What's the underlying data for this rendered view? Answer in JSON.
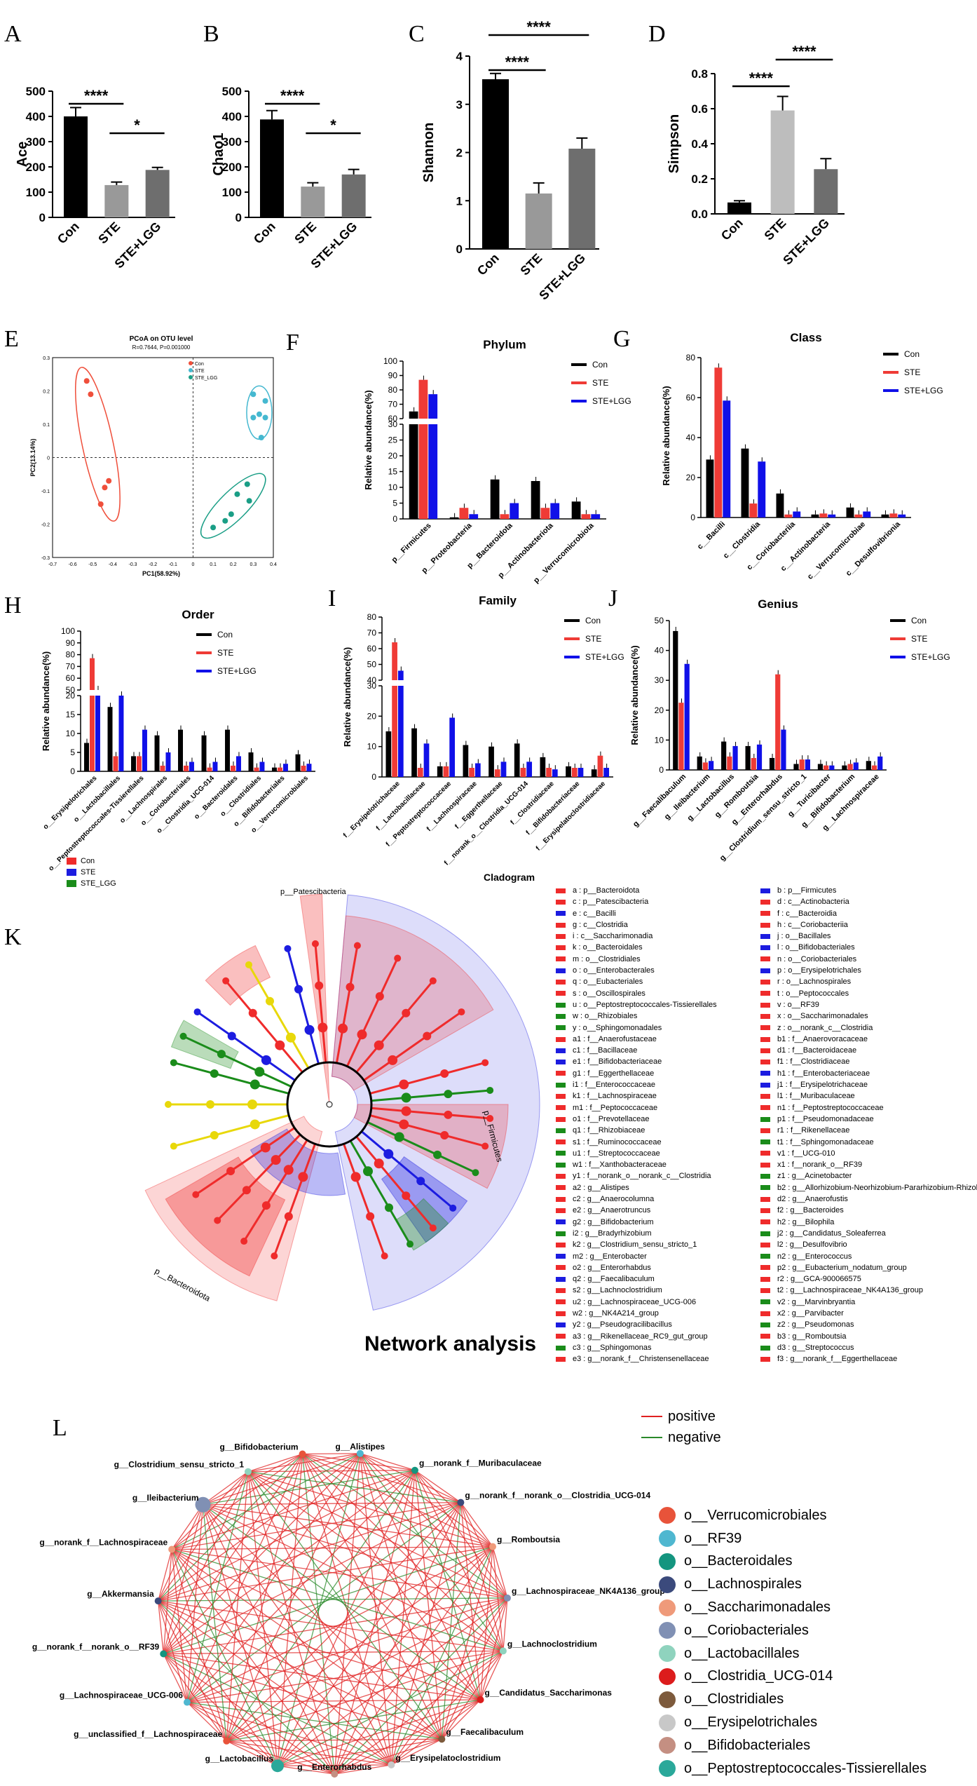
{
  "colors": {
    "black": "#000000",
    "red": "#ef3b36",
    "blue": "#1010e8",
    "green": "#1a7f1a",
    "grey": "#999999",
    "lightgrey": "#bdbdbd"
  },
  "labels": {
    "A": "A",
    "B": "B",
    "C": "C",
    "D": "D",
    "E": "E",
    "F": "F",
    "G": "G",
    "H": "H",
    "I": "I",
    "J": "J",
    "K": "K",
    "L": "L"
  },
  "alpha_panels": [
    {
      "id": "A",
      "ylabel": "Ace",
      "ylim": [
        0,
        500
      ],
      "ticks": [
        0,
        100,
        200,
        300,
        400,
        500
      ],
      "categories": [
        "Con",
        "STE",
        "STE+LGG"
      ],
      "values": [
        400,
        128,
        188
      ],
      "errors": [
        35,
        12,
        10
      ],
      "colors": [
        "#000000",
        "#999999",
        "#6e6e6e"
      ],
      "sig": [
        {
          "from": 0,
          "to": 1,
          "text": "****"
        },
        {
          "from": 1,
          "to": 2,
          "text": "*"
        }
      ]
    },
    {
      "id": "B",
      "ylabel": "Chao1",
      "ylim": [
        0,
        500
      ],
      "ticks": [
        0,
        100,
        200,
        300,
        400,
        500
      ],
      "categories": [
        "Con",
        "STE",
        "STE+LGG"
      ],
      "values": [
        388,
        122,
        170
      ],
      "errors": [
        35,
        15,
        20
      ],
      "colors": [
        "#000000",
        "#999999",
        "#6e6e6e"
      ],
      "sig": [
        {
          "from": 0,
          "to": 1,
          "text": "****"
        },
        {
          "from": 1,
          "to": 2,
          "text": "*"
        }
      ]
    },
    {
      "id": "C",
      "ylabel": "Shannon",
      "ylim": [
        0,
        4
      ],
      "ticks": [
        0,
        1,
        2,
        3,
        4
      ],
      "categories": [
        "Con",
        "STE",
        "STE+LGG"
      ],
      "values": [
        3.52,
        1.15,
        2.08
      ],
      "errors": [
        0.12,
        0.22,
        0.22
      ],
      "colors": [
        "#000000",
        "#999999",
        "#6e6e6e"
      ],
      "sig": [
        {
          "from": 0,
          "to": 1,
          "text": "****"
        },
        {
          "from": 0,
          "to": 2,
          "text": "****"
        }
      ]
    },
    {
      "id": "D",
      "ylabel": "Simpson",
      "ylim": [
        0,
        0.8
      ],
      "ticks": [
        0.0,
        0.2,
        0.4,
        0.6,
        0.8
      ],
      "categories": [
        "Con",
        "STE",
        "STE+LGG"
      ],
      "values": [
        0.065,
        0.59,
        0.255
      ],
      "errors": [
        0.01,
        0.08,
        0.06
      ],
      "colors": [
        "#000000",
        "#bdbdbd",
        "#6e6e6e"
      ],
      "sig": [
        {
          "from": 0,
          "to": 1,
          "text": "****"
        },
        {
          "from": 1,
          "to": 2,
          "text": "****"
        }
      ]
    }
  ],
  "pcoa": {
    "title": "PCoA on OTU level",
    "subtitle": "R=0.7644, P=0.001000",
    "xlabel": "PC1(58.92%)",
    "ylabel": "PC2(13.14%)",
    "xticks": [
      "-0.7",
      "-0.6",
      "-0.5",
      "-0.4",
      "-0.3",
      "-0.2",
      "-0.1",
      "0",
      "0.1",
      "0.2",
      "0.3",
      "0.4"
    ],
    "yticks": [
      "0.3",
      "0.2",
      "0.1",
      "0",
      "-0.1",
      "-0.2",
      "-0.3"
    ],
    "legend": [
      {
        "label": "Con",
        "color": "#ef4f3b"
      },
      {
        "label": "STE",
        "color": "#45b8d0"
      },
      {
        "label": "STE_LGG",
        "color": "#1a9e86"
      }
    ],
    "points": {
      "Con": [
        [
          -0.53,
          0.23
        ],
        [
          -0.51,
          0.19
        ],
        [
          -0.42,
          -0.07
        ],
        [
          -0.44,
          -0.09
        ],
        [
          -0.46,
          -0.14
        ]
      ],
      "STE": [
        [
          0.3,
          0.19
        ],
        [
          0.36,
          0.17
        ],
        [
          0.33,
          0.13
        ],
        [
          0.36,
          0.12
        ],
        [
          0.3,
          0.12
        ],
        [
          0.34,
          0.06
        ]
      ],
      "STE_LGG": [
        [
          0.27,
          -0.08
        ],
        [
          0.22,
          -0.11
        ],
        [
          0.28,
          -0.13
        ],
        [
          0.19,
          -0.17
        ],
        [
          0.16,
          -0.19
        ],
        [
          0.1,
          -0.21
        ]
      ]
    }
  },
  "chart_data": [
    {
      "type": "bar",
      "id": "F",
      "title": "Phylum",
      "ylabel": "Relative abundance(%)",
      "categories": [
        "p__Firmicutes",
        "p__Proteobacteria",
        "p__Bacteroidota",
        "p__Actinobacteriota",
        "p__Verrucomicrobiota"
      ],
      "series": [
        {
          "name": "Con",
          "values": [
            65,
            0.5,
            12.5,
            12,
            5.5
          ]
        },
        {
          "name": "STE",
          "values": [
            87,
            3.5,
            1.5,
            3.5,
            1.5
          ]
        },
        {
          "name": "STE+LGG",
          "values": [
            77,
            1.5,
            5,
            5,
            1.5
          ]
        }
      ]
    },
    {
      "type": "bar",
      "id": "G",
      "title": "Class",
      "ylabel": "Relative abundance(%)",
      "categories": [
        "c__Bacilli",
        "c__Clostridia",
        "c__Coriobacteriia",
        "c__Actinobacteria",
        "c__Verrucomicrobiae",
        "c__Desulfovibrionia"
      ],
      "series": [
        {
          "name": "Con",
          "values": [
            29,
            34.5,
            12,
            1.5,
            5,
            1.5
          ]
        },
        {
          "name": "STE",
          "values": [
            75,
            7,
            1.5,
            2,
            1.5,
            2
          ]
        },
        {
          "name": "STE+LGG",
          "values": [
            58.5,
            28,
            3,
            1.5,
            3,
            1.5
          ]
        }
      ]
    },
    {
      "type": "bar",
      "id": "H",
      "title": "Order",
      "ylabel": "Relative abundance(%)",
      "categories": [
        "o__Erysipelotrichales",
        "o__Lactobacillales",
        "o__Peptostreptococcales-Tissierellales",
        "o__Lachnospirales",
        "o__Coriobacteriales",
        "o__Clostridia_UCG-014",
        "o__Bacteroidales",
        "o__Clostridiales",
        "o__Bifidobacteriales",
        "o__Verrucomicrobiales"
      ],
      "series": [
        {
          "name": "Con",
          "values": [
            7.5,
            17,
            4,
            9.5,
            11,
            9.5,
            11,
            5,
            1,
            4.5
          ]
        },
        {
          "name": "STE",
          "values": [
            77,
            4,
            4,
            1.5,
            1.5,
            1,
            1.5,
            1,
            1,
            1.5
          ]
        },
        {
          "name": "STE+LGG",
          "values": [
            50,
            20,
            11,
            5,
            2.5,
            2.5,
            4,
            2.5,
            2,
            2
          ]
        }
      ]
    },
    {
      "type": "bar",
      "id": "I",
      "title": "Family",
      "ylabel": "Relative abundance(%)",
      "categories": [
        "f__Erysipelotrichaceae",
        "f__Lactobacillaceae",
        "f__Peptostreptococcaceae",
        "f__Lachnospiraceae",
        "f__Eggerthellaceae",
        "f__norank_o__Clostridia_UCG-014",
        "f__Clostridiaceae",
        "f__Bifidobacteriaceae",
        "f__Erysipelatoclostridiaceae"
      ],
      "series": [
        {
          "name": "Con",
          "values": [
            15,
            16,
            3.5,
            10.5,
            10,
            11,
            6.5,
            3.5,
            2.5
          ]
        },
        {
          "name": "STE",
          "values": [
            64,
            3,
            3.5,
            3,
            2.5,
            3,
            3,
            3,
            7
          ]
        },
        {
          "name": "STE+LGG",
          "values": [
            46,
            11,
            19.5,
            4.5,
            5,
            5,
            2.5,
            3,
            3
          ]
        }
      ]
    },
    {
      "type": "bar",
      "id": "J",
      "title": "Genius",
      "ylabel": "Relative abundance(%)",
      "categories": [
        "g__Faecalibaculum",
        "g__Ileibacterium",
        "g__Lactobacillus",
        "g__Romboutsia",
        "g__Enterorhabdus",
        "g__Clostridium_sensu_stricto_1",
        "g__Turicibacter",
        "g__Bifidobacterium",
        "g__Lachnospiraceae"
      ],
      "series": [
        {
          "name": "Con",
          "values": [
            46.5,
            4.5,
            9.5,
            8,
            4,
            2,
            2,
            1.5,
            3
          ]
        },
        {
          "name": "STE",
          "values": [
            22.5,
            2.5,
            4.5,
            4,
            32,
            3.5,
            1.5,
            2,
            1.5
          ]
        },
        {
          "name": "STE+LGG",
          "values": [
            35.5,
            3,
            8,
            8.5,
            13.5,
            3.5,
            1.5,
            2.5,
            4.5
          ]
        }
      ]
    }
  ],
  "bar_legend": [
    "Con",
    "STE",
    "STE+LGG"
  ],
  "cladogram": {
    "title": "Cladogram",
    "group_legend": [
      {
        "label": "Con",
        "color": "#ef2b2b"
      },
      {
        "label": "STE",
        "color": "#1c1ce0"
      },
      {
        "label": "STE_LGG",
        "color": "#1a8c1a"
      }
    ],
    "clade_labels": {
      "pat": "p__Patescibacteria",
      "firm": "p__Firmicutes",
      "bact": "p__Bacteroidota"
    },
    "legend_left": [
      {
        "c": "#ef2b2b",
        "t": "a : p__Bacteroidota"
      },
      {
        "c": "#ef2b2b",
        "t": "c : p__Patescibacteria"
      },
      {
        "c": "#1c1ce0",
        "t": "e : c__Bacilli"
      },
      {
        "c": "#ef2b2b",
        "t": "g : c__Clostridia"
      },
      {
        "c": "#ef2b2b",
        "t": "i : c__Saccharimonadia"
      },
      {
        "c": "#ef2b2b",
        "t": "k : o__Bacteroidales"
      },
      {
        "c": "#ef2b2b",
        "t": "m : o__Clostridiales"
      },
      {
        "c": "#1c1ce0",
        "t": "o : o__Enterobacterales"
      },
      {
        "c": "#ef2b2b",
        "t": "q : o__Eubacteriales"
      },
      {
        "c": "#ef2b2b",
        "t": "s : o__Oscillospirales"
      },
      {
        "c": "#1a8c1a",
        "t": "u : o__Peptostreptococcales-Tissierellales"
      },
      {
        "c": "#1a8c1a",
        "t": "w : o__Rhizobiales"
      },
      {
        "c": "#1a8c1a",
        "t": "y : o__Sphingomonadales"
      },
      {
        "c": "#ef2b2b",
        "t": "a1 : f__Anaerofustaceae"
      },
      {
        "c": "#1c1ce0",
        "t": "c1 : f__Bacillaceae"
      },
      {
        "c": "#1c1ce0",
        "t": "e1 : f__Bifidobacteriaceae"
      },
      {
        "c": "#ef2b2b",
        "t": "g1 : f__Eggerthellaceae"
      },
      {
        "c": "#1a8c1a",
        "t": "i1 : f__Enterococcaceae"
      },
      {
        "c": "#ef2b2b",
        "t": "k1 : f__Lachnospiraceae"
      },
      {
        "c": "#ef2b2b",
        "t": "m1 : f__Peptococcaceae"
      },
      {
        "c": "#ef2b2b",
        "t": "o1 : f__Prevotellaceae"
      },
      {
        "c": "#1a8c1a",
        "t": "q1 : f__Rhizobiaceae"
      },
      {
        "c": "#ef2b2b",
        "t": "s1 : f__Ruminococcaceae"
      },
      {
        "c": "#1a8c1a",
        "t": "u1 : f__Streptococcaceae"
      },
      {
        "c": "#1a8c1a",
        "t": "w1 : f__Xanthobacteraceae"
      },
      {
        "c": "#ef2b2b",
        "t": "y1 : f__norank_o__norank_c__Clostridia"
      },
      {
        "c": "#ef2b2b",
        "t": "a2 : g__Alistipes"
      },
      {
        "c": "#ef2b2b",
        "t": "c2 : g__Anaerocolumna"
      },
      {
        "c": "#ef2b2b",
        "t": "e2 : g__Anaerotruncus"
      },
      {
        "c": "#1c1ce0",
        "t": "g2 : g__Bifidobacterium"
      },
      {
        "c": "#1a8c1a",
        "t": "i2 : g__Bradyrhizobium"
      },
      {
        "c": "#ef2b2b",
        "t": "k2 : g__Clostridium_sensu_stricto_1"
      },
      {
        "c": "#1c1ce0",
        "t": "m2 : g__Enterobacter"
      },
      {
        "c": "#ef2b2b",
        "t": "o2 : g__Enterorhabdus"
      },
      {
        "c": "#1c1ce0",
        "t": "q2 : g__Faecalibaculum"
      },
      {
        "c": "#ef2b2b",
        "t": "s2 : g__Lachnoclostridium"
      },
      {
        "c": "#ef2b2b",
        "t": "u2 : g__Lachnospiraceae_UCG-006"
      },
      {
        "c": "#ef2b2b",
        "t": "w2 : g__NK4A214_group"
      },
      {
        "c": "#1c1ce0",
        "t": "y2 : g__Pseudogracilibacillus"
      },
      {
        "c": "#ef2b2b",
        "t": "a3 : g__Rikenellaceae_RC9_gut_group"
      },
      {
        "c": "#1a8c1a",
        "t": "c3 : g__Sphingomonas"
      },
      {
        "c": "#ef2b2b",
        "t": "e3 : g__norank_f__Christensenellaceae"
      }
    ],
    "legend_right": [
      {
        "c": "#1c1ce0",
        "t": "b : p__Firmicutes"
      },
      {
        "c": "#ef2b2b",
        "t": "d : c__Actinobacteria"
      },
      {
        "c": "#ef2b2b",
        "t": "f : c__Bacteroidia"
      },
      {
        "c": "#ef2b2b",
        "t": "h : c__Coriobacteriia"
      },
      {
        "c": "#1c1ce0",
        "t": "j : o__Bacillales"
      },
      {
        "c": "#1c1ce0",
        "t": "l : o__Bifidobacteriales"
      },
      {
        "c": "#ef2b2b",
        "t": "n : o__Coriobacteriales"
      },
      {
        "c": "#1c1ce0",
        "t": "p : o__Erysipelotrichales"
      },
      {
        "c": "#ef2b2b",
        "t": "r : o__Lachnospirales"
      },
      {
        "c": "#ef2b2b",
        "t": "t : o__Peptococcales"
      },
      {
        "c": "#ef2b2b",
        "t": "v : o__RF39"
      },
      {
        "c": "#ef2b2b",
        "t": "x : o__Saccharimonadales"
      },
      {
        "c": "#ef2b2b",
        "t": "z : o__norank_c__Clostridia"
      },
      {
        "c": "#ef2b2b",
        "t": "b1 : f__Anaerovoracaceae"
      },
      {
        "c": "#ef2b2b",
        "t": "d1 : f__Bacteroidaceae"
      },
      {
        "c": "#ef2b2b",
        "t": "f1 : f__Clostridiaceae"
      },
      {
        "c": "#1c1ce0",
        "t": "h1 : f__Enterobacteriaceae"
      },
      {
        "c": "#1c1ce0",
        "t": "j1 : f__Erysipelotrichaceae"
      },
      {
        "c": "#ef2b2b",
        "t": "l1 : f__Muribaculaceae"
      },
      {
        "c": "#ef2b2b",
        "t": "n1 : f__Peptostreptococcaceae"
      },
      {
        "c": "#1a8c1a",
        "t": "p1 : f__Pseudomonadaceae"
      },
      {
        "c": "#ef2b2b",
        "t": "r1 : f__Rikenellaceae"
      },
      {
        "c": "#1a8c1a",
        "t": "t1 : f__Sphingomonadaceae"
      },
      {
        "c": "#ef2b2b",
        "t": "v1 : f__UCG-010"
      },
      {
        "c": "#ef2b2b",
        "t": "x1 : f__norank_o__RF39"
      },
      {
        "c": "#1a8c1a",
        "t": "z1 : g__Acinetobacter"
      },
      {
        "c": "#1a8c1a",
        "t": "b2 : g__Allorhizobium-Neorhizobium-Pararhizobium-Rhizobium"
      },
      {
        "c": "#ef2b2b",
        "t": "d2 : g__Anaerofustis"
      },
      {
        "c": "#ef2b2b",
        "t": "f2 : g__Bacteroides"
      },
      {
        "c": "#ef2b2b",
        "t": "h2 : g__Bilophila"
      },
      {
        "c": "#1a8c1a",
        "t": "j2 : g__Candidatus_Soleaferrea"
      },
      {
        "c": "#ef2b2b",
        "t": "l2 : g__Desulfovibrio"
      },
      {
        "c": "#1a8c1a",
        "t": "n2 : g__Enterococcus"
      },
      {
        "c": "#ef2b2b",
        "t": "p2 : g__Eubacterium_nodatum_group"
      },
      {
        "c": "#ef2b2b",
        "t": "r2 : g__GCA-900066575"
      },
      {
        "c": "#ef2b2b",
        "t": "t2 : g__Lachnospiraceae_NK4A136_group"
      },
      {
        "c": "#1a8c1a",
        "t": "v2 : g__Marvinbryantia"
      },
      {
        "c": "#ef2b2b",
        "t": "x2 : g__Parvibacter"
      },
      {
        "c": "#1a8c1a",
        "t": "z2 : g__Pseudomonas"
      },
      {
        "c": "#ef2b2b",
        "t": "b3 : g__Romboutsia"
      },
      {
        "c": "#1a8c1a",
        "t": "d3 : g__Streptococcus"
      },
      {
        "c": "#ef2b2b",
        "t": "f3 : g__norank_f__Eggerthellaceae"
      }
    ]
  },
  "network": {
    "title": "Network analysis",
    "edge_legend": [
      {
        "label": "positive",
        "color": "#e02020"
      },
      {
        "label": "negative",
        "color": "#2a8a2a"
      }
    ],
    "nodes": [
      "g__Bifidobacterium",
      "g__Alistipes",
      "g__norank_f__Muribaculaceae",
      "g__norank_f__norank_o__Clostridia_UCG-014",
      "g__Romboutsia",
      "g__Lachnospiraceae_NK4A136_group",
      "g__Lachnoclostridium",
      "g__Candidatus_Saccharimonas",
      "g__Faecalibaculum",
      "g__Erysipelatoclostridium",
      "g__Enterorhabdus",
      "g__Lactobacillus",
      "g__unclassified_f__Lachnospiraceae",
      "g__Lachnospiraceae_UCG-006",
      "g__norank_f__norank_o__RF39",
      "g__Akkermansia",
      "g__norank_f__Lachnospiraceae",
      "g__Ileibacterium",
      "g__Clostridium_sensu_stricto_1"
    ],
    "order_legend": [
      {
        "label": "o__Verrucomicrobiales",
        "color": "#e8533a"
      },
      {
        "label": "o__RF39",
        "color": "#4fb7d0"
      },
      {
        "label": "o__Bacteroidales",
        "color": "#14957f"
      },
      {
        "label": "o__Lachnospirales",
        "color": "#3b4a7c"
      },
      {
        "label": "o__Saccharimonadales",
        "color": "#ef9a7a"
      },
      {
        "label": "o__Coriobacteriales",
        "color": "#8090b4"
      },
      {
        "label": "o__Lactobacillales",
        "color": "#8fd3be"
      },
      {
        "label": "o__Clostridia_UCG-014",
        "color": "#dc1c1c"
      },
      {
        "label": "o__Clostridiales",
        "color": "#7d5a3c"
      },
      {
        "label": "o__Erysipelotrichales",
        "color": "#c8c8c8"
      },
      {
        "label": "o__Bifidobacteriales",
        "color": "#c48f82"
      },
      {
        "label": "o__Peptostreptococcales-Tissierellales",
        "color": "#2aa89a"
      }
    ]
  }
}
